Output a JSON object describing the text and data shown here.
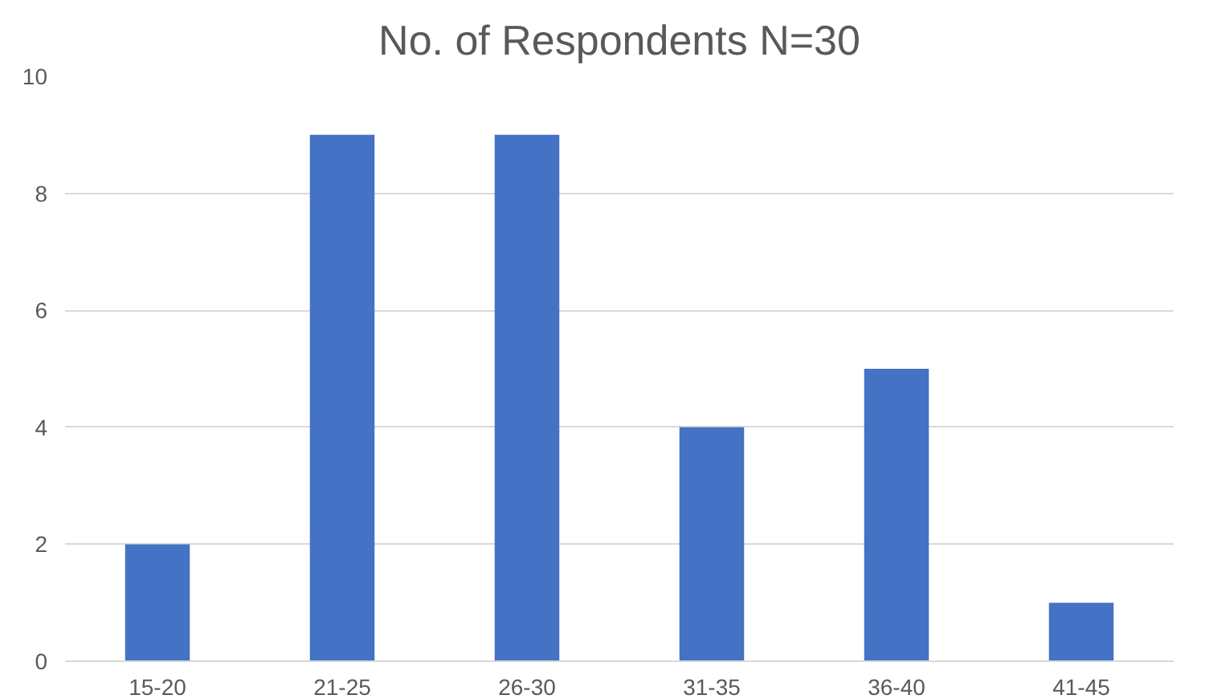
{
  "chart_data": {
    "type": "bar",
    "title": "No. of Respondents N=30",
    "categories": [
      "15-20",
      "21-25",
      "26-30",
      "31-35",
      "36-40",
      "41-45"
    ],
    "values": [
      2,
      9,
      9,
      4,
      5,
      1
    ],
    "color": "#4472c4",
    "ylim": [
      0,
      10
    ],
    "yticks": [
      0,
      2,
      4,
      6,
      8,
      10
    ],
    "grid": "y"
  }
}
